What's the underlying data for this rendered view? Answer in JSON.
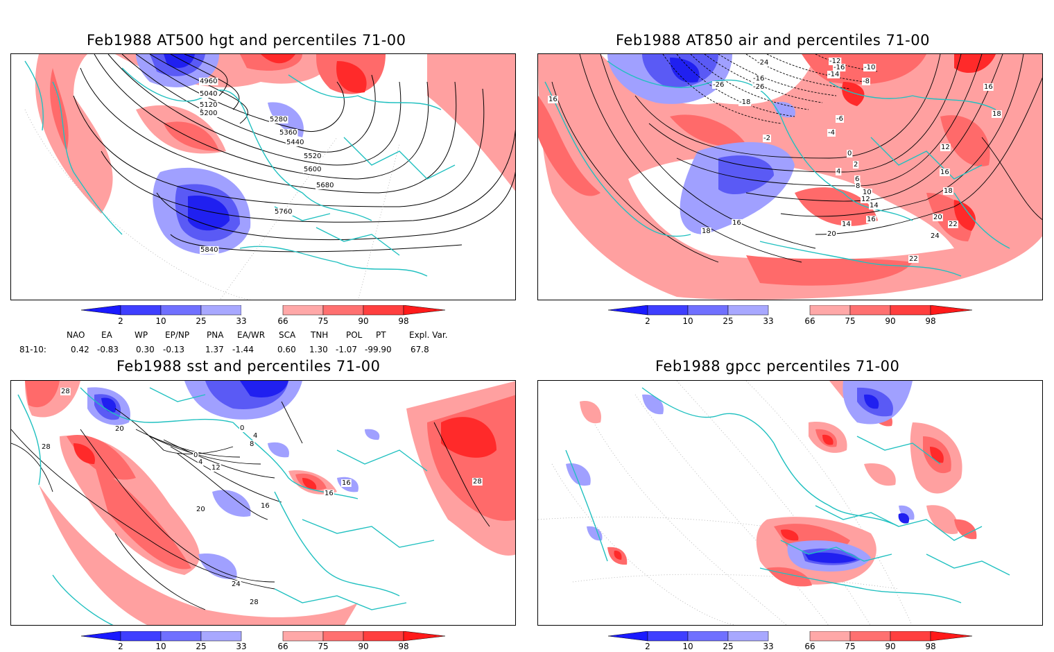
{
  "panels": [
    {
      "id": "p1",
      "title": "Feb1988 AT500 hgt and percentiles 71-00",
      "contour_labels": [
        "4960",
        "5040",
        "5120",
        "5200",
        "5280",
        "5360",
        "5440",
        "5520",
        "5600",
        "5680",
        "5760",
        "5840"
      ]
    },
    {
      "id": "p2",
      "title": "Feb1988 AT850 air and percentiles 71-00",
      "contour_labels": [
        "-24",
        "-26",
        "-16",
        "-26",
        "-12",
        "-10",
        "-16",
        "-14",
        "-8",
        "-18",
        "-6",
        "-4",
        "-2",
        "0",
        "2",
        "4",
        "6",
        "8",
        "10",
        "12",
        "14",
        "16",
        "18",
        "16",
        "14",
        "12",
        "16",
        "18",
        "20",
        "22",
        "24",
        "22",
        "20",
        "16",
        "18",
        "16"
      ]
    },
    {
      "id": "p3",
      "title": "Feb1988 sst and percentiles 71-00",
      "contour_labels": [
        "28",
        "20",
        "28",
        "0",
        "4",
        "8",
        "12",
        "16",
        "20",
        "16",
        "24",
        "28",
        "0",
        "4",
        "16",
        "28"
      ]
    },
    {
      "id": "p4",
      "title": "Feb1988 gpcc percentiles 71-00",
      "contour_labels": []
    }
  ],
  "colorbar": {
    "labels": [
      "2",
      "10",
      "25",
      "33",
      "66",
      "75",
      "90",
      "98"
    ],
    "colors": [
      "#1a1aff",
      "#3f3fff",
      "#7070ff",
      "#a8a8ff",
      "#ffffff",
      "#ffa8a8",
      "#ff7070",
      "#ff3f3f",
      "#ff1a1a"
    ]
  },
  "indices": {
    "headers": [
      "NAO",
      "EA",
      "WP",
      "EP/NP",
      "PNA",
      "EA/WR",
      "SCA",
      "TNH",
      "POL",
      "PT",
      "Expl. Var."
    ],
    "row_label": "81-10:",
    "values": [
      "0.42",
      "-0.83",
      "0.30",
      "-0.13",
      "1.37",
      "-1.44",
      "0.60",
      "1.30",
      "-1.07",
      "-99.90",
      "67.8"
    ]
  },
  "colors": {
    "coast": "#20c0c0",
    "blue_strong": "#2020f0",
    "blue_mid": "#5a5af5",
    "blue_light": "#a0a0ff",
    "red_light": "#ffa0a0",
    "red_mid": "#ff6a6a",
    "red_strong": "#ff2a2a"
  }
}
